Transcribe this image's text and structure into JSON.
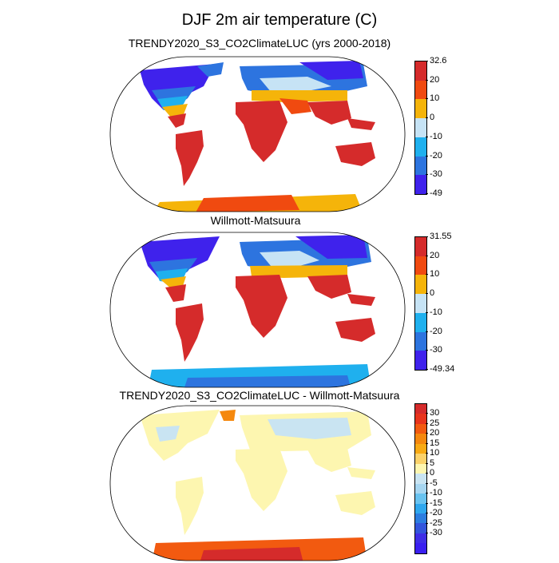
{
  "title": "DJF 2m air temperature (C)",
  "panels": [
    {
      "subtitle": "TRENDY2020_S3_CO2ClimateLUC (yrs 2000-2018)",
      "colorbar": {
        "colors": [
          "#d52b2b",
          "#f04a10",
          "#f5b40a",
          "#c6e3f5",
          "#1fb0ee",
          "#2d74df",
          "#3f22ec"
        ],
        "labels": [
          "32.6",
          "20",
          "10",
          "0",
          "-10",
          "-20",
          "-30",
          "-49"
        ]
      }
    },
    {
      "subtitle": "Willmott-Matsuura",
      "colorbar": {
        "colors": [
          "#d52b2b",
          "#f04a10",
          "#f5b40a",
          "#c6e3f5",
          "#1fb0ee",
          "#2d74df",
          "#3f22ec"
        ],
        "labels": [
          "31.55",
          "20",
          "10",
          "0",
          "-10",
          "-20",
          "-30",
          "-49.34"
        ]
      }
    },
    {
      "subtitle": "TRENDY2020_S3_CO2ClimateLUC - Willmott-Matsuura",
      "colorbar": {
        "colors": [
          "#d52b2b",
          "#e8341c",
          "#f25a10",
          "#f5880e",
          "#f8aa14",
          "#fbd26a",
          "#fdf6b0",
          "#c9e4f2",
          "#a7d6f1",
          "#69c3f0",
          "#2fa7ee",
          "#2c7de0",
          "#3355dc",
          "#3f2ee6",
          "#3a1ff0"
        ],
        "labels": [
          "30",
          "25",
          "20",
          "15",
          "10",
          "5",
          "0",
          "-5",
          "-10",
          "-15",
          "-20",
          "-25",
          "-30"
        ]
      }
    }
  ]
}
